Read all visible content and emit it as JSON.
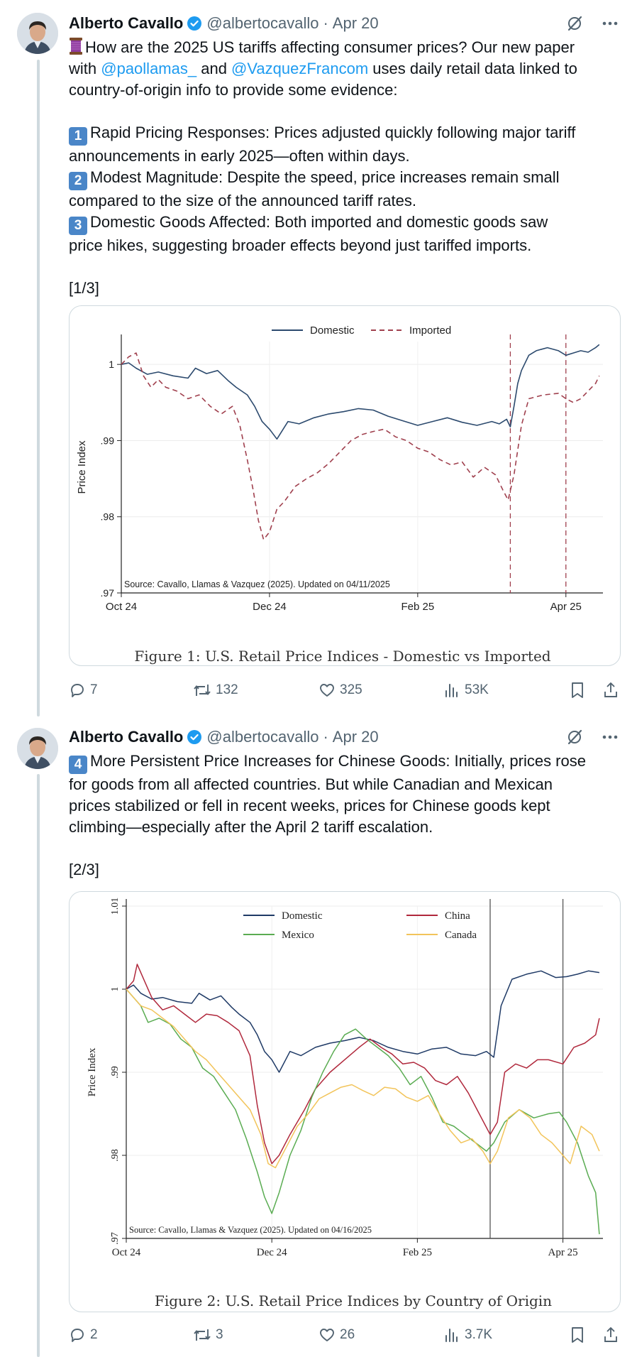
{
  "tweets": [
    {
      "author": {
        "name": "Alberto Cavallo",
        "handle": "@albertocavallo",
        "date": "Apr 20",
        "separator": "·"
      },
      "text": {
        "intro_rest": "How are the 2025 US tariffs affecting consumer prices? Our new paper",
        "line2_pre": "with ",
        "mention1": "@paollamas_",
        "line2_mid": " and ",
        "mention2": "@VazquezFrancom",
        "line2_post": " uses daily retail data linked to",
        "line3": "country-of-origin info to provide some evidence:",
        "points": [
          {
            "key": "1",
            "l1": "Rapid Pricing Responses: Prices adjusted quickly following major tariff",
            "l2": "announcements in early 2025—often within days."
          },
          {
            "key": "2",
            "l1": "Modest Magnitude:  Despite the speed, price increases remain small",
            "l2": "compared to the size of the announced tariff rates."
          },
          {
            "key": "3",
            "l1": "Domestic Goods Affected: Both imported and domestic goods saw",
            "l2": "price hikes, suggesting broader effects beyond just tariffed imports."
          }
        ],
        "counter": "[1/3]"
      },
      "stats": {
        "replies": "7",
        "reposts": "132",
        "likes": "325",
        "views": "53K"
      }
    },
    {
      "author": {
        "name": "Alberto Cavallo",
        "handle": "@albertocavallo",
        "date": "Apr 20",
        "separator": "·"
      },
      "text": {
        "key": "4",
        "l1": "More Persistent Price Increases for Chinese Goods: Initially, prices rose",
        "l2": "for goods from all affected countries. But while Canadian and Mexican",
        "l3": "prices stabilized or fell in recent weeks, prices for Chinese goods kept",
        "l4": "climbing—especially after the April 2 tariff escalation.",
        "counter": "[2/3]"
      },
      "stats": {
        "replies": "2",
        "reposts": "3",
        "likes": "26",
        "views": "3.7K"
      }
    }
  ],
  "chart_data": [
    {
      "type": "line",
      "title": "Figure 1: U.S. Retail Price Indices - Domestic vs Imported",
      "xlabel": "",
      "ylabel": "Price Index",
      "source_note": "Source: Cavallo, Llamas & Vazquez (2025). Updated on 04/11/2025",
      "x_ticks": [
        "Oct 24",
        "Dec 24",
        "Feb 25",
        "Apr 25"
      ],
      "y_ticks": [
        ".97",
        ".98",
        ".99",
        "1"
      ],
      "ylim": [
        0.97,
        1.003
      ],
      "x_range_months": [
        0,
        6.5
      ],
      "vlines_months": [
        5.25,
        6.0
      ],
      "series": [
        {
          "name": "Domestic",
          "color": "#2c4a6e",
          "dash": "solid",
          "x": [
            0,
            0.1,
            0.2,
            0.35,
            0.5,
            0.7,
            0.9,
            1.0,
            1.15,
            1.3,
            1.45,
            1.55,
            1.7,
            1.8,
            1.9,
            2.0,
            2.1,
            2.25,
            2.4,
            2.6,
            2.8,
            3.0,
            3.2,
            3.4,
            3.6,
            3.8,
            4.0,
            4.2,
            4.4,
            4.6,
            4.8,
            5.0,
            5.1,
            5.2,
            5.25,
            5.3,
            5.35,
            5.4,
            5.5,
            5.6,
            5.75,
            5.9,
            6.0,
            6.1,
            6.2,
            6.3,
            6.4,
            6.45
          ],
          "values": [
            1.0,
            1.0002,
            0.9995,
            0.9987,
            0.999,
            0.9985,
            0.9982,
            0.9995,
            0.9988,
            0.9992,
            0.9978,
            0.997,
            0.996,
            0.9945,
            0.9925,
            0.9915,
            0.9902,
            0.9925,
            0.9922,
            0.993,
            0.9935,
            0.9938,
            0.9942,
            0.994,
            0.9932,
            0.9926,
            0.992,
            0.9925,
            0.993,
            0.9924,
            0.992,
            0.9925,
            0.9922,
            0.9928,
            0.9918,
            0.9945,
            0.9975,
            0.9992,
            1.0012,
            1.0018,
            1.0022,
            1.0018,
            1.0012,
            1.0015,
            1.0018,
            1.0016,
            1.0022,
            1.0026
          ]
        },
        {
          "name": "Imported",
          "color": "#a0404e",
          "dash": "dashed",
          "x": [
            0,
            0.1,
            0.2,
            0.3,
            0.4,
            0.5,
            0.6,
            0.75,
            0.9,
            1.05,
            1.2,
            1.35,
            1.5,
            1.6,
            1.7,
            1.78,
            1.85,
            1.92,
            2.0,
            2.1,
            2.2,
            2.35,
            2.5,
            2.65,
            2.8,
            2.95,
            3.1,
            3.25,
            3.4,
            3.55,
            3.7,
            3.85,
            4.0,
            4.15,
            4.3,
            4.45,
            4.6,
            4.75,
            4.9,
            5.05,
            5.15,
            5.22,
            5.3,
            5.4,
            5.5,
            5.7,
            5.9,
            6.0,
            6.1,
            6.2,
            6.3,
            6.4,
            6.45
          ],
          "values": [
            1.0,
            1.001,
            1.0015,
            0.9985,
            0.997,
            0.998,
            0.997,
            0.9965,
            0.9955,
            0.996,
            0.9945,
            0.9935,
            0.9945,
            0.992,
            0.9875,
            0.9835,
            0.9795,
            0.977,
            0.978,
            0.981,
            0.982,
            0.984,
            0.985,
            0.9858,
            0.987,
            0.9885,
            0.99,
            0.9908,
            0.9912,
            0.9915,
            0.9905,
            0.99,
            0.989,
            0.9885,
            0.9875,
            0.9868,
            0.9872,
            0.9852,
            0.9865,
            0.9855,
            0.9835,
            0.9822,
            0.9855,
            0.992,
            0.9955,
            0.996,
            0.9962,
            0.9955,
            0.995,
            0.9955,
            0.9965,
            0.9975,
            0.9985
          ]
        }
      ]
    },
    {
      "type": "line",
      "title": "Figure 2: U.S. Retail Price Indices by Country of Origin",
      "xlabel": "",
      "ylabel": "Price Index",
      "source_note": "Source: Cavallo, Llamas & Vazquez (2025). Updated on 04/16/2025",
      "x_ticks": [
        "Oct 24",
        "Dec 24",
        "Feb 25",
        "Apr 25"
      ],
      "y_ticks": [
        ".97",
        ".98",
        ".99",
        "1",
        "1.01"
      ],
      "ylim": [
        0.97,
        1.01
      ],
      "x_range_months": [
        0,
        6.55
      ],
      "vlines_months": [
        5.0,
        6.0
      ],
      "series": [
        {
          "name": "Domestic",
          "color": "#1f3a66",
          "x": [
            0,
            0.1,
            0.2,
            0.35,
            0.5,
            0.7,
            0.9,
            1.0,
            1.15,
            1.3,
            1.45,
            1.55,
            1.7,
            1.8,
            1.9,
            2.0,
            2.1,
            2.25,
            2.4,
            2.6,
            2.8,
            3.0,
            3.2,
            3.4,
            3.6,
            3.8,
            4.0,
            4.2,
            4.4,
            4.6,
            4.8,
            4.95,
            5.05,
            5.15,
            5.3,
            5.5,
            5.7,
            5.9,
            6.05,
            6.2,
            6.35,
            6.5
          ],
          "values": [
            1.0,
            1.0005,
            0.9995,
            0.9988,
            0.999,
            0.9985,
            0.9983,
            0.9995,
            0.9987,
            0.9992,
            0.9978,
            0.997,
            0.996,
            0.9945,
            0.9925,
            0.9915,
            0.99,
            0.9925,
            0.992,
            0.993,
            0.9935,
            0.9938,
            0.9942,
            0.9938,
            0.993,
            0.9925,
            0.9922,
            0.9928,
            0.993,
            0.9922,
            0.992,
            0.9925,
            0.9918,
            0.998,
            1.0012,
            1.0018,
            1.0022,
            1.0014,
            1.0015,
            1.0018,
            1.0022,
            1.002
          ]
        },
        {
          "name": "China",
          "color": "#b0283c",
          "x": [
            0,
            0.1,
            0.15,
            0.25,
            0.35,
            0.5,
            0.65,
            0.8,
            0.95,
            1.1,
            1.25,
            1.4,
            1.55,
            1.7,
            1.8,
            1.9,
            2.0,
            2.1,
            2.25,
            2.45,
            2.6,
            2.8,
            3.0,
            3.2,
            3.35,
            3.5,
            3.65,
            3.8,
            3.95,
            4.1,
            4.25,
            4.4,
            4.55,
            4.7,
            4.85,
            5.0,
            5.1,
            5.2,
            5.35,
            5.5,
            5.65,
            5.8,
            6.0,
            6.15,
            6.3,
            6.45,
            6.5
          ],
          "values": [
            1.0,
            1.001,
            1.003,
            1.001,
            0.999,
            0.9975,
            0.998,
            0.997,
            0.996,
            0.997,
            0.9968,
            0.996,
            0.995,
            0.992,
            0.986,
            0.9815,
            0.979,
            0.98,
            0.9825,
            0.9855,
            0.988,
            0.99,
            0.9915,
            0.993,
            0.994,
            0.993,
            0.9922,
            0.991,
            0.9912,
            0.9905,
            0.989,
            0.9885,
            0.9895,
            0.9875,
            0.985,
            0.9825,
            0.984,
            0.99,
            0.991,
            0.9905,
            0.9915,
            0.9915,
            0.991,
            0.993,
            0.9935,
            0.9945,
            0.9965
          ]
        },
        {
          "name": "Mexico",
          "color": "#5aac52",
          "x": [
            0,
            0.1,
            0.2,
            0.3,
            0.45,
            0.6,
            0.75,
            0.9,
            1.05,
            1.2,
            1.35,
            1.5,
            1.65,
            1.8,
            1.9,
            2.0,
            2.1,
            2.25,
            2.4,
            2.55,
            2.7,
            2.85,
            3.0,
            3.15,
            3.3,
            3.45,
            3.6,
            3.75,
            3.9,
            4.05,
            4.2,
            4.35,
            4.5,
            4.65,
            4.8,
            4.95,
            5.05,
            5.2,
            5.4,
            5.6,
            5.8,
            5.95,
            6.05,
            6.2,
            6.35,
            6.45,
            6.5
          ],
          "values": [
            1.0,
            0.999,
            0.998,
            0.996,
            0.9965,
            0.9958,
            0.994,
            0.993,
            0.9905,
            0.9895,
            0.9875,
            0.9855,
            0.982,
            0.978,
            0.975,
            0.973,
            0.9755,
            0.98,
            0.983,
            0.987,
            0.99,
            0.9925,
            0.9945,
            0.9952,
            0.994,
            0.993,
            0.992,
            0.9905,
            0.9885,
            0.9895,
            0.987,
            0.984,
            0.9835,
            0.9825,
            0.9815,
            0.9805,
            0.9815,
            0.984,
            0.9855,
            0.9845,
            0.985,
            0.9852,
            0.984,
            0.9815,
            0.9775,
            0.9755,
            0.9705
          ]
        },
        {
          "name": "Canada",
          "color": "#f2c45a",
          "x": [
            0,
            0.1,
            0.2,
            0.35,
            0.5,
            0.65,
            0.8,
            0.95,
            1.1,
            1.25,
            1.4,
            1.55,
            1.7,
            1.85,
            1.95,
            2.05,
            2.2,
            2.35,
            2.5,
            2.65,
            2.8,
            2.95,
            3.1,
            3.25,
            3.4,
            3.55,
            3.7,
            3.85,
            4.0,
            4.15,
            4.3,
            4.45,
            4.6,
            4.75,
            4.9,
            5.0,
            5.1,
            5.25,
            5.4,
            5.55,
            5.7,
            5.85,
            6.0,
            6.1,
            6.25,
            6.4,
            6.5
          ],
          "values": [
            1.0,
            0.999,
            0.998,
            0.9975,
            0.9965,
            0.9955,
            0.994,
            0.9925,
            0.9915,
            0.99,
            0.9885,
            0.987,
            0.9855,
            0.9825,
            0.979,
            0.9785,
            0.981,
            0.9835,
            0.985,
            0.9868,
            0.9875,
            0.9882,
            0.9885,
            0.9878,
            0.9872,
            0.9882,
            0.988,
            0.987,
            0.9865,
            0.9872,
            0.985,
            0.983,
            0.9815,
            0.982,
            0.9805,
            0.979,
            0.9805,
            0.9845,
            0.9855,
            0.9845,
            0.9825,
            0.9815,
            0.98,
            0.979,
            0.9835,
            0.9825,
            0.9805
          ]
        }
      ]
    }
  ]
}
